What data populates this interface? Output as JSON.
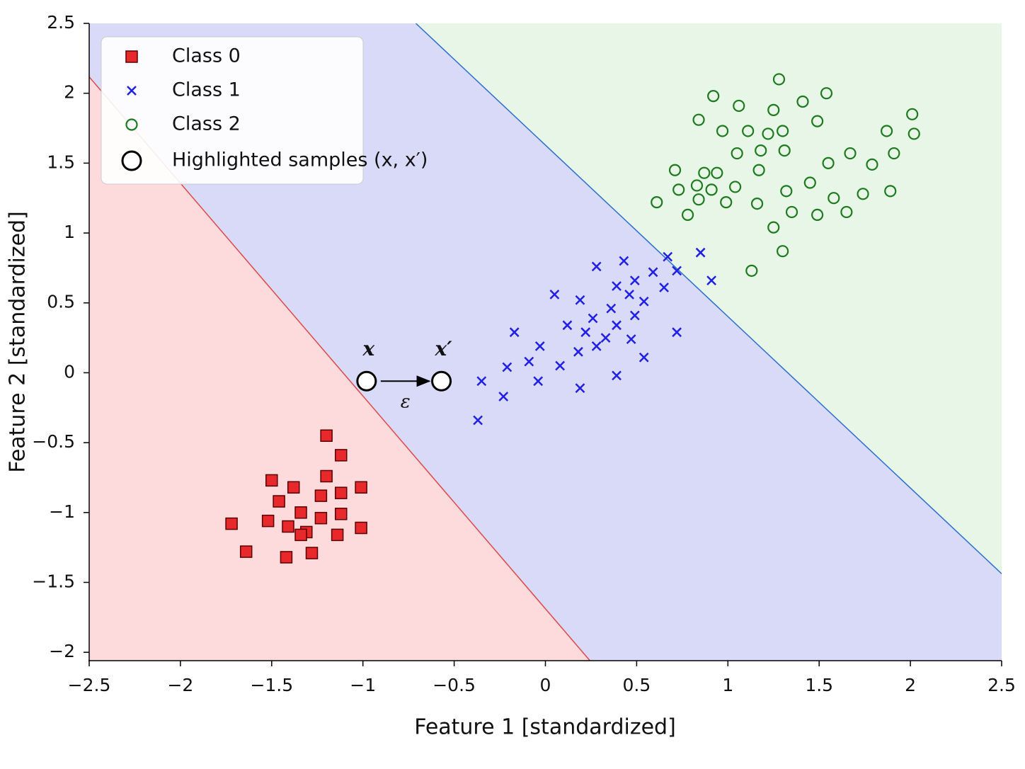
{
  "chart_data": {
    "type": "scatter",
    "xlabel": "Feature 1 [standardized]",
    "ylabel": "Feature 2 [standardized]",
    "xlim": [
      -2.5,
      2.5
    ],
    "ylim": [
      -2.06,
      2.5
    ],
    "xticks": [
      {
        "value": -2.5,
        "label": "−2.5"
      },
      {
        "value": -2,
        "label": "−2"
      },
      {
        "value": -1.5,
        "label": "−1.5"
      },
      {
        "value": -1,
        "label": "−1"
      },
      {
        "value": -0.5,
        "label": "−0.5"
      },
      0,
      0.5,
      1,
      1.5,
      2,
      2.5
    ],
    "yticks": [
      {
        "value": -2,
        "label": "−2"
      },
      {
        "value": -1.5,
        "label": "−1.5"
      },
      {
        "value": -1,
        "label": "−1"
      },
      {
        "value": -0.5,
        "label": "−0.5"
      },
      0,
      0.5,
      1,
      1.5,
      2,
      2.5
    ],
    "grid": false,
    "legend": "upper left",
    "regions": [
      "#fddadc",
      "#d9d9f8",
      "#e7f6e6"
    ],
    "boundaries": [
      {
        "color": "#e04848",
        "x": [
          -2.5,
          0.244
        ],
        "y": [
          2.117,
          -2.06
        ]
      },
      {
        "color": "#2a6fd0",
        "x": [
          -0.71,
          2.5
        ],
        "y": [
          2.5,
          -1.438
        ]
      }
    ],
    "series": [
      {
        "name": "Class 0",
        "color": "#e8292b",
        "marker": "square",
        "x": [
          -1.2,
          -1.12,
          -1.2,
          -1.5,
          -1.38,
          -1.01,
          -1.46,
          -1.23,
          -1.12,
          -1.34,
          -1.12,
          -1.72,
          -1.52,
          -1.41,
          -1.23,
          -1.31,
          -1.34,
          -1.14,
          -1.01,
          -1.64,
          -1.42,
          -1.28
        ],
        "y": [
          -0.45,
          -0.59,
          -0.74,
          -0.77,
          -0.82,
          -0.82,
          -0.92,
          -0.88,
          -0.86,
          -1.0,
          -1.01,
          -1.08,
          -1.06,
          -1.1,
          -1.04,
          -1.14,
          -1.16,
          -1.16,
          -1.11,
          -1.28,
          -1.32,
          -1.29
        ]
      },
      {
        "name": "Class 1",
        "color": "#1f1fe8",
        "marker": "x",
        "x": [
          -0.37,
          -0.35,
          -0.23,
          -0.21,
          -0.17,
          -0.09,
          -0.04,
          -0.03,
          0.05,
          0.08,
          0.12,
          0.18,
          0.19,
          0.19,
          0.22,
          0.26,
          0.28,
          0.28,
          0.33,
          0.36,
          0.39,
          0.39,
          0.39,
          0.43,
          0.46,
          0.47,
          0.49,
          0.49,
          0.54,
          0.54,
          0.59,
          0.65,
          0.67,
          0.72,
          0.72,
          0.85,
          0.91
        ],
        "y": [
          -0.34,
          -0.06,
          -0.17,
          0.04,
          0.29,
          0.08,
          -0.06,
          0.19,
          0.56,
          0.05,
          0.34,
          0.15,
          -0.11,
          0.52,
          0.29,
          0.39,
          0.76,
          0.19,
          0.25,
          0.46,
          0.62,
          0.34,
          -0.02,
          0.8,
          0.56,
          0.24,
          0.66,
          0.41,
          0.51,
          0.11,
          0.72,
          0.61,
          0.83,
          0.73,
          0.29,
          0.86,
          0.66
        ]
      },
      {
        "name": "Class 2",
        "color": "#1e7a1e",
        "marker": "circle",
        "x": [
          1.28,
          0.92,
          1.54,
          1.41,
          1.06,
          1.25,
          2.01,
          0.84,
          1.49,
          0.97,
          1.11,
          1.22,
          1.3,
          1.87,
          2.02,
          1.05,
          1.18,
          1.31,
          1.67,
          1.91,
          1.55,
          1.79,
          0.71,
          0.87,
          0.94,
          1.17,
          0.73,
          0.83,
          0.91,
          1.04,
          1.45,
          1.32,
          1.74,
          1.89,
          0.61,
          0.84,
          0.99,
          1.16,
          1.58,
          0.78,
          1.35,
          1.49,
          1.65,
          1.25,
          1.3,
          1.13
        ],
        "y": [
          2.1,
          1.98,
          2.0,
          1.94,
          1.91,
          1.88,
          1.85,
          1.81,
          1.8,
          1.73,
          1.73,
          1.71,
          1.73,
          1.73,
          1.71,
          1.57,
          1.59,
          1.59,
          1.57,
          1.57,
          1.5,
          1.49,
          1.45,
          1.43,
          1.43,
          1.45,
          1.31,
          1.34,
          1.31,
          1.33,
          1.36,
          1.3,
          1.28,
          1.3,
          1.22,
          1.24,
          1.22,
          1.21,
          1.25,
          1.13,
          1.15,
          1.13,
          1.15,
          1.04,
          0.87,
          0.73
        ]
      },
      {
        "name": "Highlighted samples (x, x′)",
        "color": "#000000",
        "marker": "ring",
        "x": [
          -0.98,
          -0.57
        ],
        "y": [
          -0.06,
          -0.06
        ]
      }
    ],
    "annotations": {
      "point_labels": [
        "x",
        "x′"
      ],
      "arrow_label": "ε"
    }
  }
}
